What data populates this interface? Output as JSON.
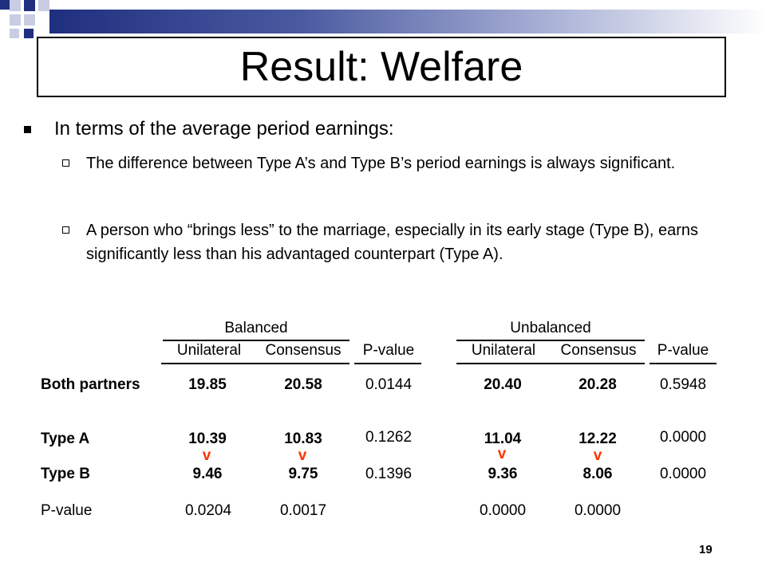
{
  "title": "Result: Welfare",
  "bullet": "In terms of the average period earnings:",
  "subbullets": [
    "The difference between Type A’s and Type B’s period earnings is always significant.",
    "A person who “brings less” to the marriage, especially in its early stage (Type B), earns significantly less than his advantaged counterpart (Type A)."
  ],
  "table": {
    "groups": [
      "Balanced",
      "Unbalanced"
    ],
    "columns": [
      "Unilateral",
      "Consensus",
      "P-value",
      "Unilateral",
      "Consensus",
      "P-value"
    ],
    "rows": [
      {
        "label": "Both partners",
        "values": [
          "19.85",
          "20.58",
          "0.0144",
          "20.40",
          "20.28",
          "0.5948"
        ]
      },
      {
        "label": "Type A",
        "values": [
          "10.39",
          "10.83",
          "0.1262",
          "11.04",
          "12.22",
          "0.0000"
        ]
      },
      {
        "label": "Type B",
        "values": [
          "9.46",
          "9.75",
          "0.1396",
          "9.36",
          "8.06",
          "0.0000"
        ]
      },
      {
        "label": "P-value",
        "values": [
          "0.0204",
          "0.0017",
          "",
          "0.0000",
          "0.0000",
          ""
        ]
      }
    ],
    "marks": [
      "v",
      "v",
      "v",
      "v"
    ],
    "mark_color": "#ff3300"
  },
  "page_number": "19",
  "colors": {
    "accent": "#1f2f7f",
    "accent_light": "#c8cde4"
  }
}
